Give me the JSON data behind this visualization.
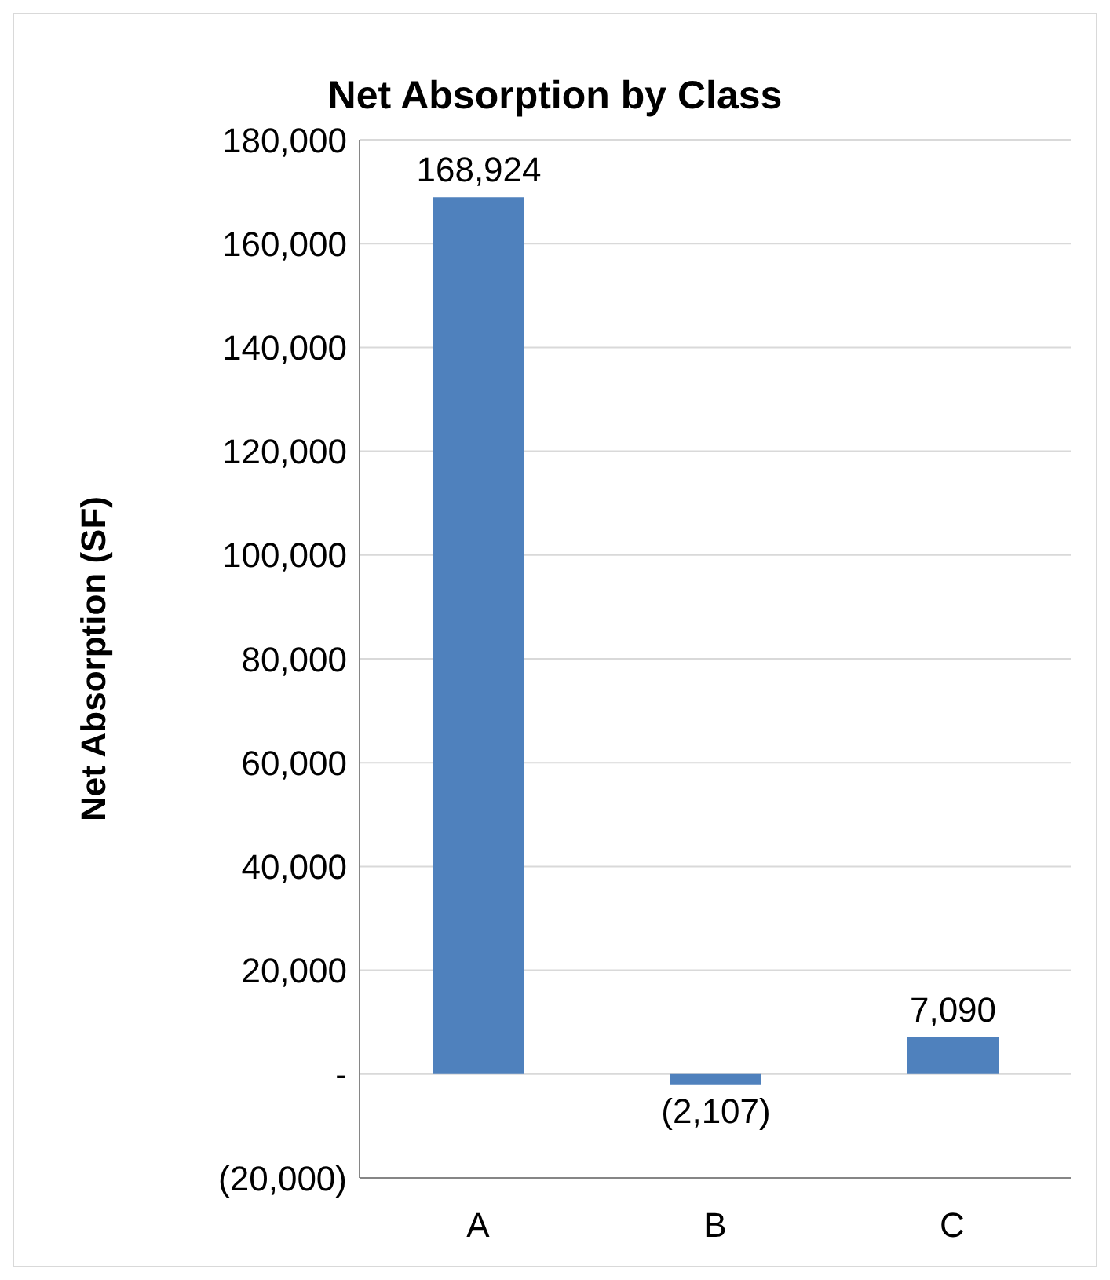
{
  "chart_data": {
    "type": "bar",
    "title": "Net Absorption by Class",
    "ylabel": "Net Absorption (SF)",
    "categories": [
      "A",
      "B",
      "C"
    ],
    "values": [
      168924,
      -2107,
      7090
    ],
    "value_labels": [
      "168,924",
      "(2,107)",
      "7,090"
    ],
    "color": "#4f81bd",
    "ylim": [
      -20000,
      180000
    ],
    "yticks": [
      {
        "value": -20000,
        "label": "(20,000)"
      },
      {
        "value": 0,
        "label": "-"
      },
      {
        "value": 20000,
        "label": "20,000"
      },
      {
        "value": 40000,
        "label": "40,000"
      },
      {
        "value": 60000,
        "label": "60,000"
      },
      {
        "value": 80000,
        "label": "80,000"
      },
      {
        "value": 100000,
        "label": "100,000"
      },
      {
        "value": 120000,
        "label": "120,000"
      },
      {
        "value": 140000,
        "label": "140,000"
      },
      {
        "value": 160000,
        "label": "160,000"
      },
      {
        "value": 180000,
        "label": "180,000"
      }
    ],
    "grid": "y"
  }
}
